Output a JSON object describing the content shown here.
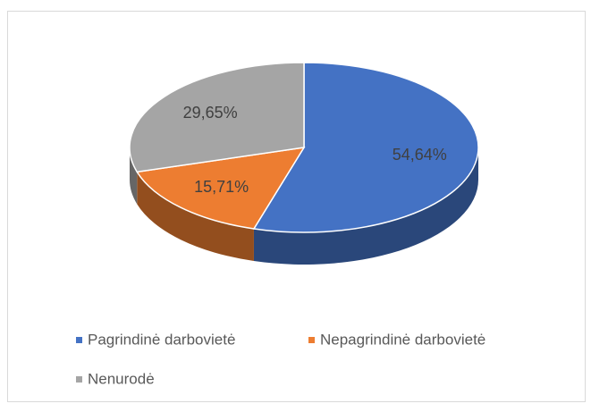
{
  "chart_data": {
    "type": "pie",
    "three_d": true,
    "categories": [
      "Pagrindinė darbovietė",
      "Nepagrindinė darbovietė",
      "Nenurodė"
    ],
    "values": [
      54.64,
      15.71,
      29.65
    ],
    "value_labels": [
      "54,64%",
      "15,71%",
      "29,65%"
    ],
    "colors": [
      "#4472c4",
      "#ed7d31",
      "#a5a5a5"
    ],
    "legend": "bottom"
  }
}
